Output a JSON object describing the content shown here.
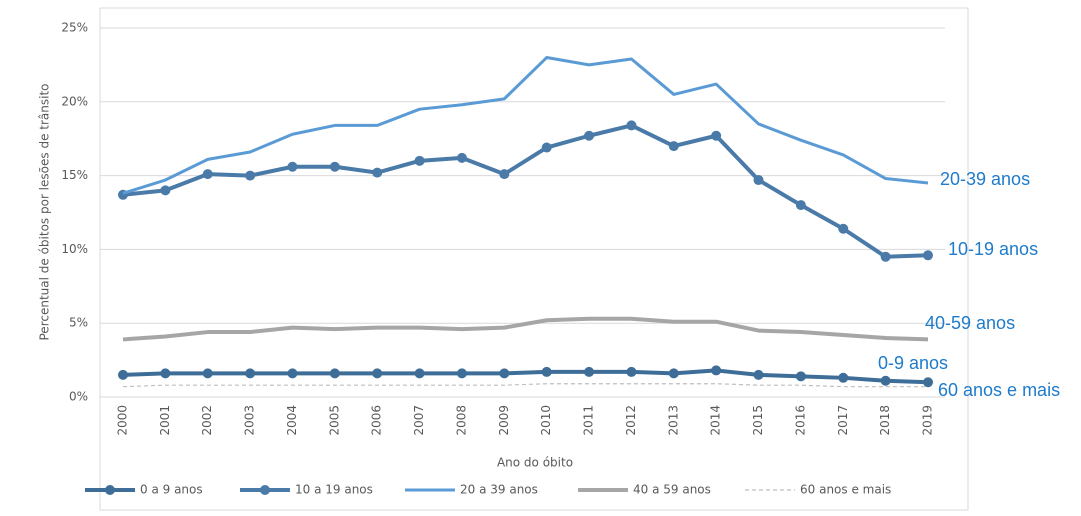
{
  "chart_data": {
    "type": "line",
    "x_label": "Ano do óbito",
    "y_label": "Percentual de óbitos por lesões de trânsito",
    "categories": [
      "2000",
      "2001",
      "2002",
      "2003",
      "2004",
      "2005",
      "2006",
      "2007",
      "2008",
      "2009",
      "2010",
      "2011",
      "2012",
      "2013",
      "2014",
      "2015",
      "2016",
      "2017",
      "2018",
      "2019"
    ],
    "ylim": [
      0,
      25
    ],
    "yticks": [
      {
        "value": 0,
        "label": "0%"
      },
      {
        "value": 5,
        "label": "5%"
      },
      {
        "value": 10,
        "label": "10%"
      },
      {
        "value": 15,
        "label": "15%"
      },
      {
        "value": 20,
        "label": "20%"
      },
      {
        "value": 25,
        "label": "25%"
      }
    ],
    "grid": true,
    "legend": "bottom",
    "series": [
      {
        "name": "0 a 9 anos",
        "label": "0-9 anos",
        "color": "#3e6e98",
        "markers": true,
        "values": [
          1.5,
          1.6,
          1.6,
          1.6,
          1.6,
          1.6,
          1.6,
          1.6,
          1.6,
          1.6,
          1.7,
          1.7,
          1.7,
          1.6,
          1.8,
          1.5,
          1.4,
          1.3,
          1.1,
          1.0
        ]
      },
      {
        "name": "10 a 19 anos",
        "label": "10-19 anos",
        "color": "#4a7aa8",
        "markers": true,
        "values": [
          13.7,
          14.0,
          15.1,
          15.0,
          15.6,
          15.6,
          15.2,
          16.0,
          16.2,
          15.1,
          16.9,
          17.7,
          18.4,
          17.0,
          17.7,
          14.7,
          13.0,
          11.4,
          9.5,
          9.6
        ]
      },
      {
        "name": "20 a 39 anos",
        "label": "20-39 anos",
        "color": "#5b9bd5",
        "markers": false,
        "values": [
          13.8,
          14.7,
          16.1,
          16.6,
          17.8,
          18.4,
          18.4,
          19.5,
          19.8,
          20.2,
          23.0,
          22.5,
          22.9,
          20.5,
          21.2,
          18.5,
          17.4,
          16.4,
          14.8,
          14.5
        ]
      },
      {
        "name": "40 a 59 anos",
        "label": "40-59 anos",
        "color": "#a6a6a6",
        "markers": false,
        "values": [
          3.9,
          4.1,
          4.4,
          4.4,
          4.7,
          4.6,
          4.7,
          4.7,
          4.6,
          4.7,
          5.2,
          5.3,
          5.3,
          5.1,
          5.1,
          4.5,
          4.4,
          4.2,
          4.0,
          3.9
        ]
      },
      {
        "name": "60 anos e mais",
        "label": "60 anos e mais",
        "color": "#bfbfbf",
        "markers": false,
        "dashed": true,
        "values": [
          0.7,
          0.8,
          0.8,
          0.8,
          0.8,
          0.8,
          0.8,
          0.8,
          0.8,
          0.8,
          0.9,
          0.9,
          0.9,
          0.9,
          0.9,
          0.8,
          0.8,
          0.7,
          0.7,
          0.7
        ]
      }
    ]
  }
}
